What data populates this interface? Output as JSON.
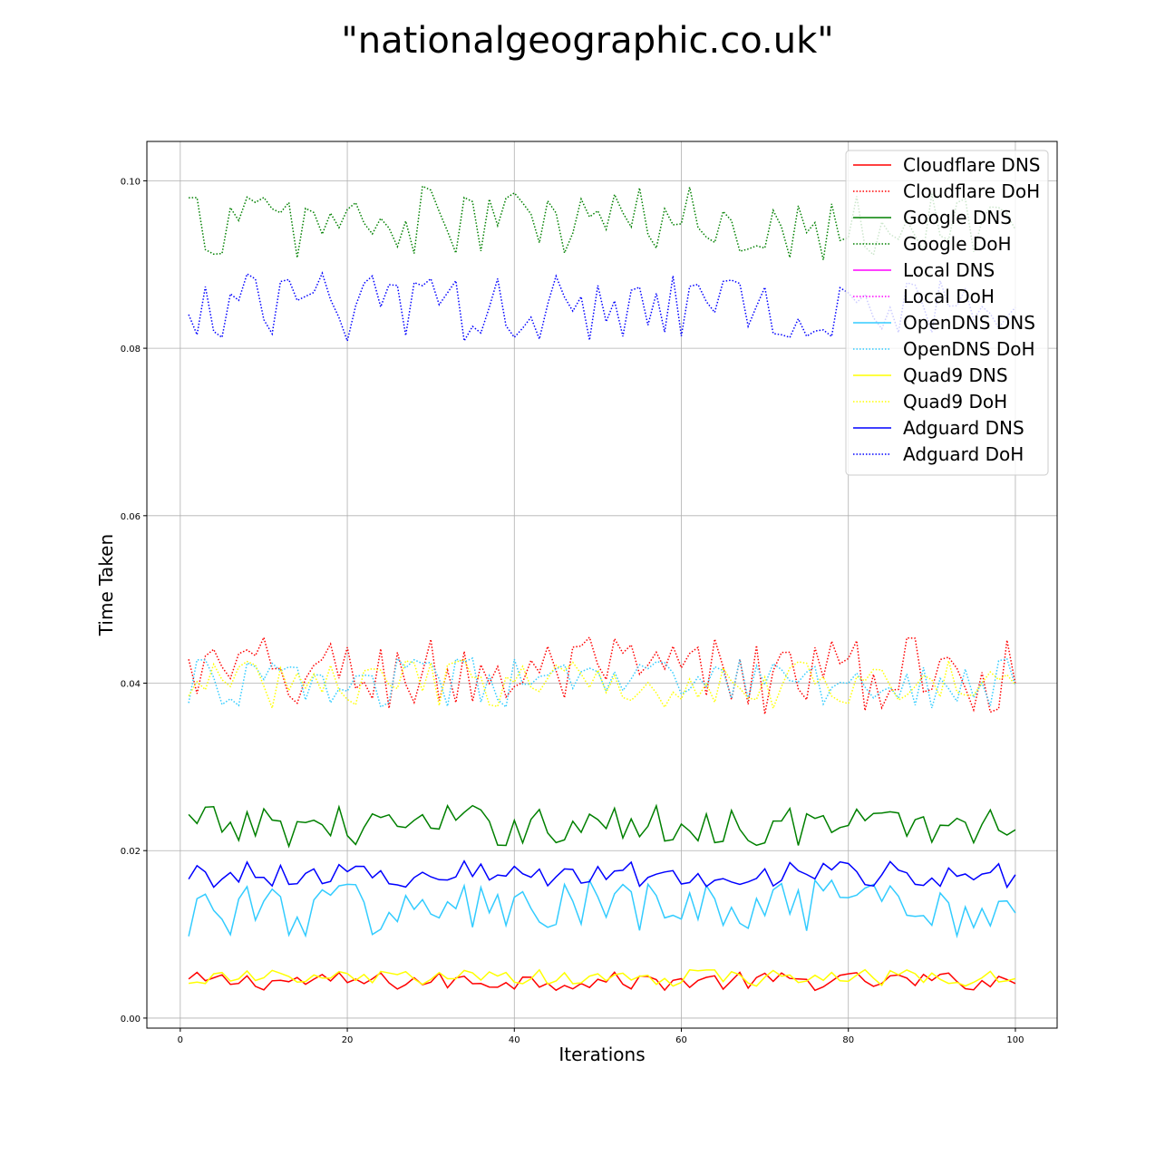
{
  "chart_data": {
    "type": "line",
    "title": "\"nationalgeographic.co.uk\"",
    "xlabel": "Iterations",
    "ylabel": "Time Taken",
    "xlim": [
      -4,
      105
    ],
    "ylim": [
      -0.0012,
      0.1047
    ],
    "xticks": [
      0,
      20,
      40,
      60,
      80,
      100
    ],
    "xtick_labels": [
      "0",
      "20",
      "40",
      "60",
      "80",
      "100"
    ],
    "yticks": [
      0.0,
      0.02,
      0.04,
      0.06,
      0.08,
      0.1
    ],
    "ytick_labels": [
      "0.00",
      "0.02",
      "0.04",
      "0.06",
      "0.08",
      "0.10"
    ],
    "grid": true,
    "legend_position": "top-right",
    "series": [
      {
        "name": "Cloudflare DNS",
        "color": "#ff0000",
        "style": "solid",
        "base": 0.0044,
        "amp": 0.0011
      },
      {
        "name": "Cloudflare DoH",
        "color": "#ff0000",
        "style": "dotted",
        "base": 0.041,
        "amp": 0.0048
      },
      {
        "name": "Google DNS",
        "color": "#008000",
        "style": "solid",
        "base": 0.023,
        "amp": 0.0025
      },
      {
        "name": "Google DoH",
        "color": "#008000",
        "style": "dotted",
        "base": 0.095,
        "amp": 0.0045
      },
      {
        "name": "Local DNS",
        "color": "#ff00ff",
        "style": "solid",
        "base": null,
        "amp": null
      },
      {
        "name": "Local DoH",
        "color": "#ff00ff",
        "style": "dotted",
        "base": null,
        "amp": null
      },
      {
        "name": "OpenDNS DNS",
        "color": "#33ccff",
        "style": "solid",
        "base": 0.013,
        "amp": 0.0035
      },
      {
        "name": "OpenDNS DoH",
        "color": "#33ccff",
        "style": "dotted",
        "base": 0.04,
        "amp": 0.003
      },
      {
        "name": "Quad9 DNS",
        "color": "#ffff00",
        "style": "solid",
        "base": 0.0048,
        "amp": 0.001
      },
      {
        "name": "Quad9 DoH",
        "color": "#ffff00",
        "style": "dotted",
        "base": 0.04,
        "amp": 0.003
      },
      {
        "name": "Adguard DNS",
        "color": "#0000ff",
        "style": "solid",
        "base": 0.0172,
        "amp": 0.0016
      },
      {
        "name": "Adguard DoH",
        "color": "#0000ff",
        "style": "dotted",
        "base": 0.085,
        "amp": 0.0042
      }
    ],
    "x_start": 1,
    "x_end": 100
  }
}
